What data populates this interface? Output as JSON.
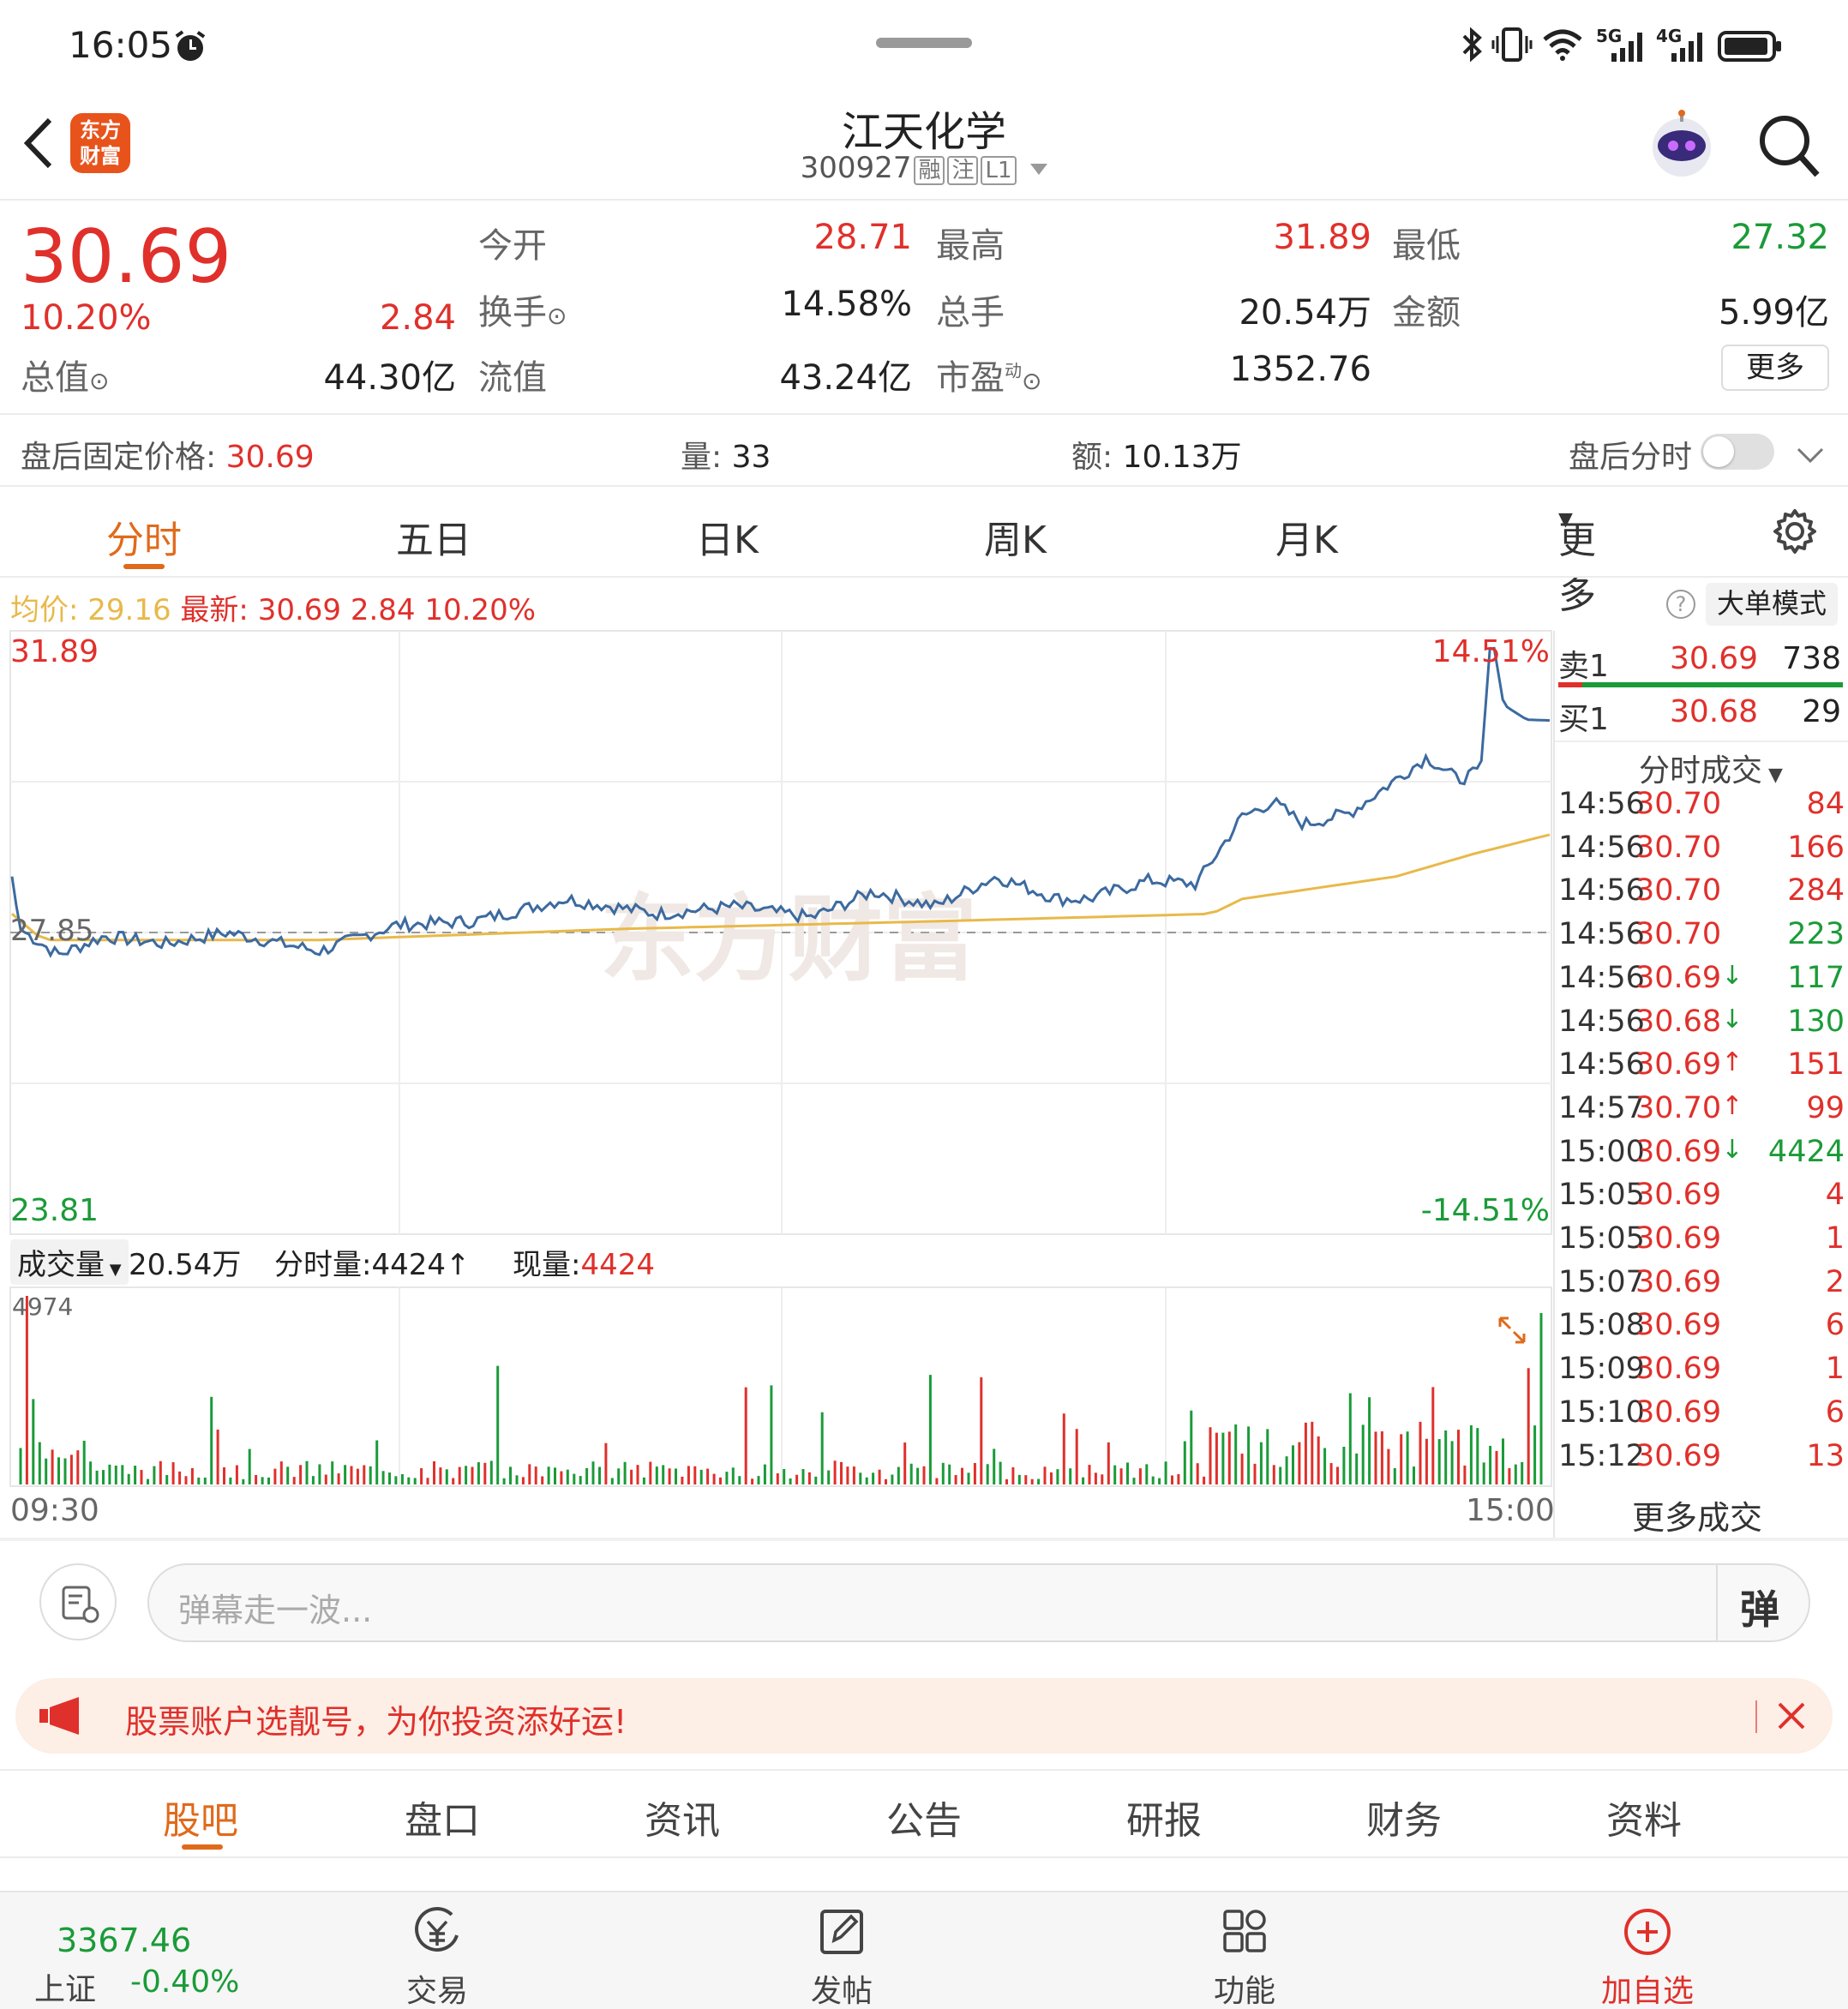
{
  "status_bar": {
    "time": "16:05",
    "net1": "5G",
    "net2": "4G"
  },
  "header": {
    "logo_line1": "东方",
    "logo_line2": "财富",
    "title": "江天化学",
    "code": "300927",
    "badges": [
      "融",
      "注",
      "L1"
    ]
  },
  "quote": {
    "price": "30.69",
    "change_pct": "10.20%",
    "change": "2.84",
    "total_value_label": "总值",
    "total_value": "44.30亿",
    "open_label": "今开",
    "open": "28.71",
    "high_label": "最高",
    "high": "31.89",
    "low_label": "最低",
    "low": "27.32",
    "turnover_label": "换手",
    "turnover": "14.58%",
    "volume_label": "总手",
    "volume": "20.54万",
    "amount_label": "金额",
    "amount": "5.99亿",
    "float_label": "流值",
    "float_value": "43.24亿",
    "pe_label": "市盈",
    "pe_sup": "动",
    "pe": "1352.76",
    "more_label": "更多"
  },
  "after_hours": {
    "price_label": "盘后固定价格: ",
    "price": "30.69",
    "vol_label": "量: ",
    "vol": "33",
    "amount_label": "额: ",
    "amount": "10.13万",
    "toggle_label": "盘后分时"
  },
  "chart_tabs": [
    "分时",
    "五日",
    "日K",
    "周K",
    "月K",
    "更多"
  ],
  "chart_header": {
    "avg_label": "均价: ",
    "avg": "29.16",
    "latest_label": "最新: ",
    "latest": "30.69",
    "change": "2.84",
    "pct": "10.20%",
    "mode_label": "大单模式"
  },
  "chart_labels": {
    "top_price": "31.89",
    "bottom_price": "23.81",
    "top_pct": "14.51%",
    "bottom_pct": "-14.51%",
    "prev_close": "27.85",
    "time_start": "09:30",
    "time_end": "15:00",
    "watermark": "东方财富"
  },
  "volume_header": {
    "label": "成交量",
    "total": "20.54万",
    "tick_label": "分时量:",
    "tick": "4424",
    "now_label": "现量:",
    "now": "4424",
    "max": "4974"
  },
  "colors": {
    "up": "#e0302b",
    "down": "#1a9b38",
    "price_line": "#3c6aa0",
    "avg_line": "#e8b94a",
    "accent": "#e06a1b"
  },
  "order_book": {
    "sell": {
      "label": "卖1",
      "price": "30.69",
      "vol": "738"
    },
    "buy": {
      "label": "买1",
      "price": "30.68",
      "vol": "29"
    },
    "trades_label": "分时成交"
  },
  "trades": [
    {
      "t": "14:56",
      "p": "30.70",
      "v": "84",
      "dir": "",
      "vc": "red"
    },
    {
      "t": "14:56",
      "p": "30.70",
      "v": "166",
      "dir": "",
      "vc": "red"
    },
    {
      "t": "14:56",
      "p": "30.70",
      "v": "284",
      "dir": "",
      "vc": "red"
    },
    {
      "t": "14:56",
      "p": "30.70",
      "v": "223",
      "dir": "",
      "vc": "green"
    },
    {
      "t": "14:56",
      "p": "30.69",
      "v": "117",
      "dir": "↓",
      "vc": "green"
    },
    {
      "t": "14:56",
      "p": "30.68",
      "v": "130",
      "dir": "↓",
      "vc": "green"
    },
    {
      "t": "14:56",
      "p": "30.69",
      "v": "151",
      "dir": "↑",
      "vc": "red"
    },
    {
      "t": "14:57",
      "p": "30.70",
      "v": "99",
      "dir": "↑",
      "vc": "red"
    },
    {
      "t": "15:00",
      "p": "30.69",
      "v": "4424",
      "dir": "↓",
      "vc": "green"
    },
    {
      "t": "15:05",
      "p": "30.69",
      "v": "4",
      "dir": "",
      "vc": "red"
    },
    {
      "t": "15:05",
      "p": "30.69",
      "v": "1",
      "dir": "",
      "vc": "red"
    },
    {
      "t": "15:07",
      "p": "30.69",
      "v": "2",
      "dir": "",
      "vc": "red"
    },
    {
      "t": "15:08",
      "p": "30.69",
      "v": "6",
      "dir": "",
      "vc": "red"
    },
    {
      "t": "15:09",
      "p": "30.69",
      "v": "1",
      "dir": "",
      "vc": "red"
    },
    {
      "t": "15:10",
      "p": "30.69",
      "v": "6",
      "dir": "",
      "vc": "red"
    },
    {
      "t": "15:12",
      "p": "30.69",
      "v": "13",
      "dir": "",
      "vc": "red"
    }
  ],
  "more_trades_label": "更多成交",
  "comment": {
    "placeholder": "弹幕走一波...",
    "danmu_label": "弹"
  },
  "banner": {
    "text": "股票账户选靓号，为你投资添好运!"
  },
  "content_tabs": [
    "股吧",
    "盘口",
    "资讯",
    "公告",
    "研报",
    "财务",
    "资料"
  ],
  "bottom_nav": {
    "index_value": "3367.46",
    "index_name": "上证",
    "index_change": "-0.40%",
    "items": [
      {
        "label": "交易"
      },
      {
        "label": "发帖"
      },
      {
        "label": "功能"
      },
      {
        "label": "加自选"
      }
    ]
  }
}
